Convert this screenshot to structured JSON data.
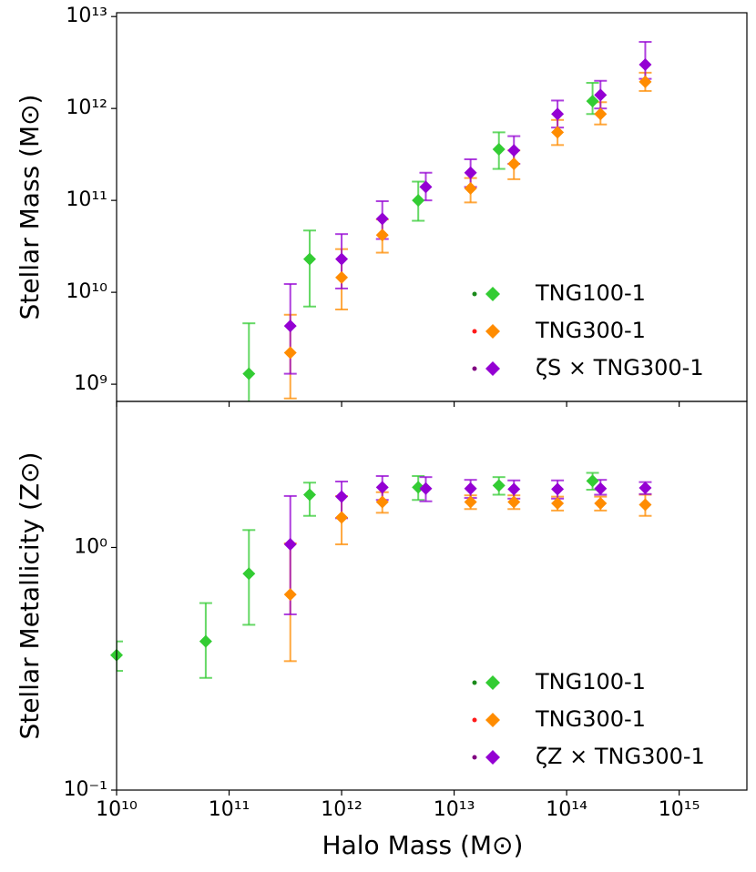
{
  "chart_data": [
    {
      "type": "scatter",
      "xlabel": "Halo Mass (M⊙)",
      "ylabel": "Stellar Mass (M⊙)",
      "xlog": true,
      "ylog": true,
      "xlim": [
        10000000000.0,
        4000000000000000.0
      ],
      "ylim": [
        650000000.0,
        11000000000000.0
      ],
      "yticks": [
        {
          "value": 1000000000.0,
          "label": "10⁹"
        },
        {
          "value": 10000000000.0,
          "label": "10¹⁰"
        },
        {
          "value": 100000000000.0,
          "label": "10¹¹"
        },
        {
          "value": 1000000000000.0,
          "label": "10¹²"
        },
        {
          "value": 10000000000000.0,
          "label": "10¹³"
        }
      ],
      "legend": "lower right",
      "series": [
        {
          "name": "TNG100-1",
          "color": "#33cc33",
          "dot_color": "#1a8a1a",
          "x": [
            150000000000.0,
            520000000000.0,
            4800000000000.0,
            25000000000000.0,
            170000000000000.0
          ],
          "values": [
            1300000000.0,
            23000000000.0,
            100000000000.0,
            360000000000.0,
            1200000000000.0
          ],
          "yerr": [
            [
              700000000.0,
              3300000000.0
            ],
            [
              16000000000.0,
              24000000000.0
            ],
            [
              40000000000.0,
              60000000000.0
            ],
            [
              140000000000.0,
              190000000000.0
            ],
            [
              330000000000.0,
              700000000000.0
            ]
          ]
        },
        {
          "name": "TNG300-1",
          "color": "#ff8c00",
          "dot_color": "#ff1a1a",
          "x": [
            350000000000.0,
            1000000000000.0,
            2300000000000.0,
            14000000000000.0,
            34000000000000.0,
            83000000000000.0,
            200000000000000.0,
            500000000000000.0
          ],
          "values": [
            2200000000.0,
            14500000000.0,
            42000000000.0,
            135000000000.0,
            250000000000.0,
            550000000000.0,
            870000000000.0,
            1950000000000.0
          ],
          "yerr": [
            [
              1500000000.0,
              3500000000.0
            ],
            [
              8000000000.0,
              15000000000.0
            ],
            [
              15000000000.0,
              20000000000.0
            ],
            [
              40000000000.0,
              40000000000.0
            ],
            [
              80000000000.0,
              100000000000.0
            ],
            [
              150000000000.0,
              200000000000.0
            ],
            [
              200000000000.0,
              300000000000.0
            ],
            [
              400000000000.0,
              500000000000.0
            ]
          ]
        },
        {
          "name": "ζS × TNG300-1",
          "color": "#9400d3",
          "dot_color": "#800080",
          "x": [
            350000000000.0,
            1000000000000.0,
            2300000000000.0,
            5600000000000.0,
            14000000000000.0,
            34000000000000.0,
            83000000000000.0,
            200000000000000.0,
            500000000000000.0
          ],
          "values": [
            4300000000.0,
            23000000000.0,
            63000000000.0,
            140000000000.0,
            200000000000.0,
            350000000000.0,
            870000000000.0,
            1400000000000.0,
            3000000000000.0
          ],
          "yerr": [
            [
              3000000000.0,
              8000000000.0
            ],
            [
              12000000000.0,
              20000000000.0
            ],
            [
              25000000000.0,
              35000000000.0
            ],
            [
              40000000000.0,
              60000000000.0
            ],
            [
              60000000000.0,
              80000000000.0
            ],
            [
              100000000000.0,
              150000000000.0
            ],
            [
              250000000000.0,
              350000000000.0
            ],
            [
              400000000000.0,
              600000000000.0
            ],
            [
              900000000000.0,
              2300000000000.0
            ]
          ]
        }
      ]
    },
    {
      "type": "scatter",
      "xlabel": "Halo Mass (M⊙)",
      "ylabel": "Stellar Metallicity (Z⊙)",
      "xlog": true,
      "ylog": true,
      "xlim": [
        10000000000.0,
        4000000000000000.0
      ],
      "ylim": [
        0.1,
        4
      ],
      "xticks": [
        {
          "value": 10000000000.0,
          "label": "10¹⁰"
        },
        {
          "value": 100000000000.0,
          "label": "10¹¹"
        },
        {
          "value": 1000000000000.0,
          "label": "10¹²"
        },
        {
          "value": 10000000000000.0,
          "label": "10¹³"
        },
        {
          "value": 100000000000000.0,
          "label": "10¹⁴"
        },
        {
          "value": 1000000000000000.0,
          "label": "10¹⁵"
        }
      ],
      "yticks": [
        {
          "value": 0.1,
          "label": "10⁻¹"
        },
        {
          "value": 1,
          "label": "10⁰"
        }
      ],
      "legend": "lower right",
      "series": [
        {
          "name": "TNG100-1",
          "color": "#33cc33",
          "dot_color": "#1a8a1a",
          "x": [
            10000000000.0,
            62000000000.0,
            150000000000.0,
            520000000000.0,
            4800000000000.0,
            25000000000000.0,
            170000000000000.0
          ],
          "values": [
            0.36,
            0.41,
            0.78,
            1.65,
            1.77,
            1.8,
            1.88
          ],
          "yerr": [
            [
              0.05,
              0.05
            ],
            [
              0.12,
              0.18
            ],
            [
              0.3,
              0.4
            ],
            [
              0.3,
              0.2
            ],
            [
              0.2,
              0.2
            ],
            [
              0.15,
              0.15
            ],
            [
              0.15,
              0.15
            ]
          ]
        },
        {
          "name": "TNG300-1",
          "color": "#ff8c00",
          "dot_color": "#ff1a1a",
          "x": [
            350000000000.0,
            1000000000000.0,
            2300000000000.0,
            14000000000000.0,
            34000000000000.0,
            83000000000000.0,
            200000000000000.0,
            500000000000000.0
          ],
          "values": [
            0.64,
            1.33,
            1.54,
            1.54,
            1.54,
            1.52,
            1.52,
            1.5
          ],
          "yerr": [
            [
              0.3,
              0.4
            ],
            [
              0.3,
              0.3
            ],
            [
              0.15,
              0.15
            ],
            [
              0.1,
              0.1
            ],
            [
              0.1,
              0.1
            ],
            [
              0.1,
              0.1
            ],
            [
              0.1,
              0.1
            ],
            [
              0.15,
              0.15
            ]
          ]
        },
        {
          "name": "ζZ × TNG300-1",
          "color": "#9400d3",
          "dot_color": "#800080",
          "x": [
            350000000000.0,
            1000000000000.0,
            2300000000000.0,
            5600000000000.0,
            14000000000000.0,
            34000000000000.0,
            83000000000000.0,
            200000000000000.0,
            500000000000000.0
          ],
          "values": [
            1.03,
            1.62,
            1.77,
            1.75,
            1.75,
            1.74,
            1.74,
            1.75,
            1.76
          ],
          "yerr": [
            [
              0.5,
              0.6
            ],
            [
              0.3,
              0.25
            ],
            [
              0.2,
              0.2
            ],
            [
              0.2,
              0.2
            ],
            [
              0.15,
              0.15
            ],
            [
              0.15,
              0.15
            ],
            [
              0.15,
              0.15
            ],
            [
              0.1,
              0.15
            ],
            [
              0.1,
              0.1
            ]
          ]
        }
      ]
    }
  ]
}
